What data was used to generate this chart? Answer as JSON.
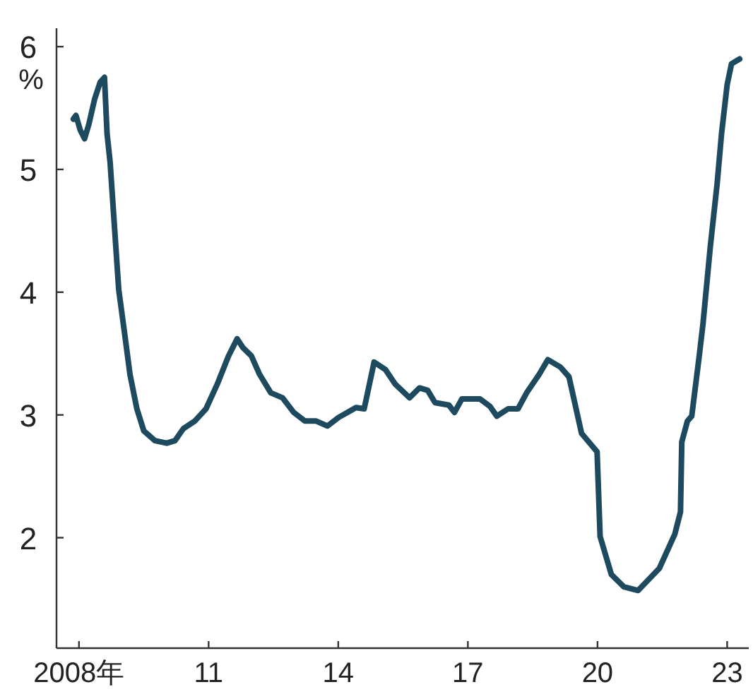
{
  "chart_data": {
    "type": "line",
    "ylabel": "%",
    "color": "#1d4a5e",
    "xlim": [
      2007.48,
      2023.5
    ],
    "ylim": [
      1.1,
      6.15
    ],
    "xticks": [
      {
        "value": 2008,
        "label": "2008年"
      },
      {
        "value": 2011,
        "label": "11"
      },
      {
        "value": 2014,
        "label": "14"
      },
      {
        "value": 2017,
        "label": "17"
      },
      {
        "value": 2020,
        "label": "20"
      },
      {
        "value": 2023,
        "label": "23"
      }
    ],
    "yticks": [
      2,
      3,
      4,
      5,
      6
    ],
    "x": [
      2007.87,
      2007.93,
      2008.03,
      2008.13,
      2008.23,
      2008.36,
      2008.49,
      2008.59,
      2008.65,
      2008.72,
      2008.82,
      2008.92,
      2009.05,
      2009.18,
      2009.34,
      2009.5,
      2009.76,
      2010.03,
      2010.22,
      2010.42,
      2010.68,
      2010.94,
      2011.2,
      2011.46,
      2011.66,
      2011.79,
      2011.99,
      2012.18,
      2012.44,
      2012.71,
      2012.97,
      2013.23,
      2013.49,
      2013.75,
      2014.01,
      2014.21,
      2014.41,
      2014.6,
      2014.83,
      2015.09,
      2015.32,
      2015.65,
      2015.88,
      2016.07,
      2016.24,
      2016.56,
      2016.69,
      2016.86,
      2017.28,
      2017.51,
      2017.67,
      2017.93,
      2018.16,
      2018.36,
      2018.65,
      2018.85,
      2019.14,
      2019.34,
      2019.63,
      2019.99,
      2020.06,
      2020.32,
      2020.61,
      2020.94,
      2021.43,
      2021.79,
      2021.92,
      2021.95,
      2022.08,
      2022.18,
      2022.35,
      2022.44,
      2022.61,
      2022.77,
      2022.87,
      2023.0,
      2023.1,
      2023.29
    ],
    "values": [
      5.41,
      5.44,
      5.32,
      5.25,
      5.37,
      5.57,
      5.71,
      5.75,
      5.29,
      5.06,
      4.54,
      4.02,
      3.68,
      3.33,
      3.05,
      2.87,
      2.79,
      2.77,
      2.79,
      2.89,
      2.95,
      3.05,
      3.25,
      3.48,
      3.62,
      3.55,
      3.48,
      3.33,
      3.18,
      3.14,
      3.02,
      2.95,
      2.95,
      2.91,
      2.98,
      3.02,
      3.06,
      3.05,
      3.43,
      3.37,
      3.25,
      3.14,
      3.22,
      3.2,
      3.1,
      3.08,
      3.02,
      3.13,
      3.13,
      3.07,
      2.99,
      3.05,
      3.05,
      3.18,
      3.33,
      3.45,
      3.39,
      3.31,
      2.85,
      2.7,
      2.01,
      1.7,
      1.6,
      1.57,
      1.75,
      2.03,
      2.21,
      2.78,
      2.95,
      2.99,
      3.47,
      3.74,
      4.37,
      4.89,
      5.29,
      5.69,
      5.86,
      5.9
    ]
  }
}
